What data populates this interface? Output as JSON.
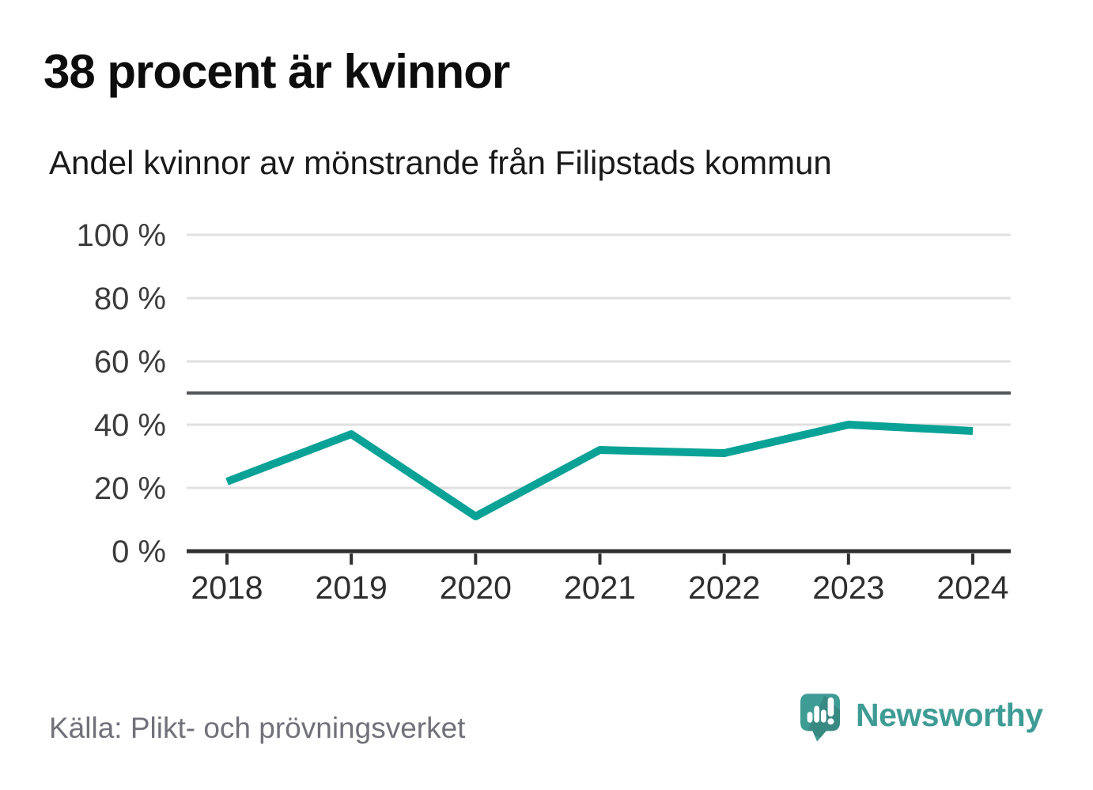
{
  "header": {
    "title": "38 procent är kvinnor",
    "subtitle": "Andel kvinnor av mönstrande från Filipstads kommun"
  },
  "chart_data": {
    "type": "line",
    "title": "38 procent är kvinnor",
    "subtitle": "Andel kvinnor av mönstrande från Filipstads kommun",
    "x": [
      2018,
      2019,
      2020,
      2021,
      2022,
      2023,
      2024
    ],
    "series": [
      {
        "name": "Andel kvinnor av mönstrande",
        "values": [
          22,
          37,
          11,
          32,
          31,
          40,
          38
        ]
      }
    ],
    "unit": "%",
    "ylim": [
      0,
      100
    ],
    "yticks": [
      0,
      20,
      40,
      60,
      80,
      100
    ],
    "ytick_suffix": " %",
    "reference_line": 50,
    "grid": true,
    "legend": "none"
  },
  "footer": {
    "source": "Källa: Plikt- och prövningsverket",
    "brand": "Newsworthy"
  },
  "colors": {
    "line": "#0aa296",
    "brand": "#3f9c95",
    "grid": "#e0e0e0",
    "reference": "#55565a",
    "axis": "#303030"
  }
}
